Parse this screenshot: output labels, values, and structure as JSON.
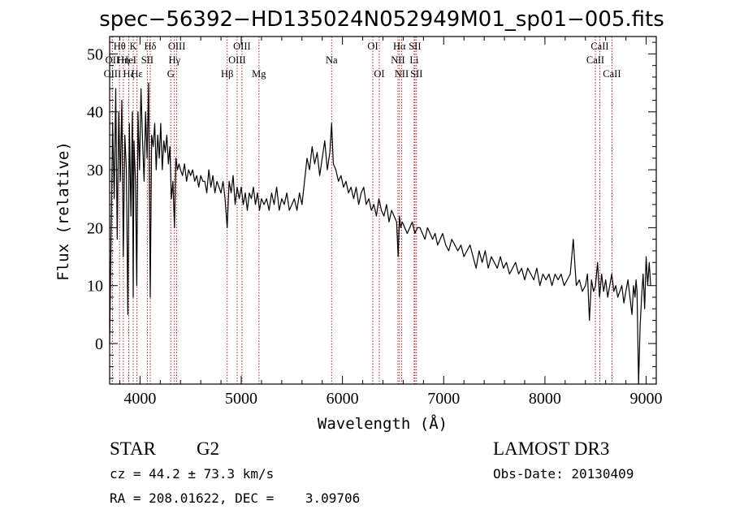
{
  "chart_data": {
    "type": "line",
    "title": "spec−56392−HD135024N052949M01_sp01−005.fits",
    "xlabel": "Wavelength (Å)",
    "ylabel": "Flux (relative)",
    "xlim": [
      3700,
      9100
    ],
    "ylim": [
      -7,
      53
    ],
    "xticks": [
      4000,
      5000,
      6000,
      7000,
      8000,
      9000
    ],
    "yticks": [
      0,
      10,
      20,
      30,
      40,
      50
    ],
    "grid": false,
    "legend": "none",
    "series": [
      {
        "name": "flux",
        "color": "#000000",
        "x": [
          3700,
          3715,
          3730,
          3745,
          3760,
          3775,
          3790,
          3805,
          3820,
          3835,
          3850,
          3865,
          3880,
          3895,
          3910,
          3925,
          3933,
          3940,
          3955,
          3968,
          3980,
          3995,
          4010,
          4025,
          4040,
          4055,
          4070,
          4085,
          4101,
          4115,
          4130,
          4145,
          4160,
          4175,
          4190,
          4205,
          4220,
          4235,
          4250,
          4265,
          4280,
          4295,
          4310,
          4325,
          4340,
          4355,
          4370,
          4385,
          4400,
          4420,
          4440,
          4460,
          4480,
          4500,
          4520,
          4540,
          4560,
          4580,
          4600,
          4620,
          4640,
          4660,
          4680,
          4700,
          4720,
          4740,
          4760,
          4780,
          4800,
          4820,
          4840,
          4861,
          4880,
          4900,
          4920,
          4940,
          4960,
          4980,
          5000,
          5020,
          5040,
          5060,
          5080,
          5100,
          5120,
          5140,
          5160,
          5180,
          5200,
          5225,
          5250,
          5275,
          5300,
          5325,
          5350,
          5375,
          5400,
          5425,
          5450,
          5475,
          5500,
          5525,
          5550,
          5575,
          5600,
          5625,
          5650,
          5675,
          5700,
          5725,
          5750,
          5775,
          5800,
          5825,
          5850,
          5875,
          5893,
          5910,
          5935,
          5960,
          5985,
          6010,
          6035,
          6060,
          6085,
          6110,
          6135,
          6160,
          6185,
          6210,
          6235,
          6260,
          6285,
          6310,
          6335,
          6360,
          6385,
          6410,
          6435,
          6460,
          6485,
          6510,
          6535,
          6550,
          6563,
          6575,
          6590,
          6615,
          6640,
          6665,
          6690,
          6715,
          6740,
          6765,
          6790,
          6815,
          6840,
          6865,
          6890,
          6915,
          6940,
          6965,
          6990,
          7020,
          7050,
          7080,
          7110,
          7140,
          7170,
          7200,
          7230,
          7260,
          7290,
          7320,
          7350,
          7380,
          7410,
          7440,
          7470,
          7500,
          7530,
          7560,
          7590,
          7620,
          7650,
          7680,
          7710,
          7740,
          7770,
          7800,
          7830,
          7860,
          7890,
          7920,
          7950,
          7980,
          8010,
          8040,
          8070,
          8100,
          8130,
          8160,
          8190,
          8220,
          8250,
          8280,
          8310,
          8340,
          8370,
          8400,
          8420,
          8440,
          8460,
          8480,
          8500,
          8520,
          8540,
          8560,
          8580,
          8600,
          8620,
          8640,
          8660,
          8680,
          8700,
          8720,
          8740,
          8760,
          8780,
          8800,
          8820,
          8840,
          8860,
          8875,
          8890,
          8900,
          8910,
          8925,
          8940,
          8955,
          8970,
          8985,
          9000,
          9015,
          9030,
          9045
        ],
        "values": [
          0,
          20,
          38,
          25,
          44,
          18,
          40,
          28,
          42,
          15,
          36,
          30,
          5,
          38,
          22,
          40,
          8,
          35,
          28,
          10,
          40,
          30,
          44,
          35,
          28,
          40,
          32,
          45,
          8,
          36,
          34,
          38,
          30,
          36,
          32,
          38,
          30,
          35,
          33,
          36,
          31,
          34,
          25,
          28,
          20,
          32,
          30,
          31,
          30,
          29,
          31,
          28,
          30,
          29,
          30,
          28,
          29,
          27,
          29,
          28,
          28,
          26,
          30,
          27,
          29,
          26,
          28,
          27,
          26,
          28,
          25,
          20,
          28,
          26,
          29,
          24,
          27,
          25,
          27,
          24,
          26,
          23,
          26,
          25,
          27,
          24,
          26,
          23,
          25,
          24,
          25,
          23,
          26,
          24,
          27,
          23,
          25,
          24,
          26,
          23,
          24,
          25,
          23,
          26,
          24,
          28,
          32,
          30,
          34,
          31,
          33,
          29,
          32,
          35,
          30,
          33,
          38,
          31,
          30,
          28,
          29,
          27,
          28,
          26,
          27,
          25,
          27,
          24,
          26,
          27,
          24,
          25,
          23,
          24,
          22,
          25,
          23,
          22,
          24,
          21,
          23,
          22,
          21,
          15,
          22,
          20,
          21,
          20,
          19,
          20,
          21,
          19,
          20,
          20,
          19,
          18,
          20,
          19,
          18,
          19,
          17,
          18,
          19,
          17,
          16,
          18,
          17,
          16,
          17,
          15,
          16,
          17,
          15,
          13,
          16,
          14,
          16,
          13,
          15,
          14,
          13,
          15,
          13,
          14,
          12,
          13,
          14,
          12,
          13,
          11,
          13,
          12,
          11,
          13,
          10,
          12,
          11,
          12,
          10,
          12,
          11,
          12,
          10,
          11,
          12,
          18,
          10,
          11,
          9,
          10,
          12,
          4,
          11,
          9,
          10,
          14,
          8,
          12,
          9,
          11,
          8,
          10,
          12,
          9,
          10,
          8,
          9,
          10,
          7,
          9,
          11,
          8,
          5,
          10,
          8,
          11,
          9,
          -7,
          3,
          8,
          12,
          6,
          15,
          10,
          14,
          10
        ]
      }
    ],
    "annotations": [
      {
        "label": "Hθ",
        "x": 3798,
        "row": 1
      },
      {
        "label": "OII",
        "x": 3727,
        "row": 2
      },
      {
        "label": "Hη",
        "x": 3835,
        "row": 2
      },
      {
        "label": "OIII",
        "x": 3727,
        "row": 3
      },
      {
        "label": "Hζ",
        "x": 3889,
        "row": 3
      },
      {
        "label": "K",
        "x": 3933,
        "row": 1
      },
      {
        "label": "HeI",
        "x": 3889,
        "row": 2
      },
      {
        "label": "Hε",
        "x": 3970,
        "row": 3
      },
      {
        "label": "SII",
        "x": 4072,
        "row": 2
      },
      {
        "label": "Hδ",
        "x": 4101,
        "row": 1
      },
      {
        "label": "OIII",
        "x": 4363,
        "row": 1
      },
      {
        "label": "Hγ",
        "x": 4340,
        "row": 2
      },
      {
        "label": "G",
        "x": 4304,
        "row": 3
      },
      {
        "label": "Hβ",
        "x": 4861,
        "row": 3
      },
      {
        "label": "OIII",
        "x": 5007,
        "row": 1
      },
      {
        "label": "OIII",
        "x": 4959,
        "row": 2
      },
      {
        "label": "Mg",
        "x": 5175,
        "row": 3
      },
      {
        "label": "Na",
        "x": 5893,
        "row": 2
      },
      {
        "label": "OI",
        "x": 6300,
        "row": 1
      },
      {
        "label": "OI",
        "x": 6364,
        "row": 3
      },
      {
        "label": "Hα",
        "x": 6563,
        "row": 1
      },
      {
        "label": "SII",
        "x": 6716,
        "row": 1
      },
      {
        "label": "NII",
        "x": 6548,
        "row": 2
      },
      {
        "label": "Li",
        "x": 6708,
        "row": 2
      },
      {
        "label": "NII",
        "x": 6584,
        "row": 3
      },
      {
        "label": "SII",
        "x": 6731,
        "row": 3
      },
      {
        "label": "CaII",
        "x": 8542,
        "row": 1
      },
      {
        "label": "CaII",
        "x": 8498,
        "row": 2
      },
      {
        "label": "CaII",
        "x": 8662,
        "row": 3
      }
    ],
    "line_color": "#b22222"
  },
  "info": {
    "object_type": "STAR",
    "subclass": "G2",
    "survey": "LAMOST DR3",
    "cz": "cz = 44.2 ± 73.3 km/s",
    "obs_date": "Obs-Date: 20130409",
    "coords": "RA = 208.01622, DEC =    3.09706"
  }
}
